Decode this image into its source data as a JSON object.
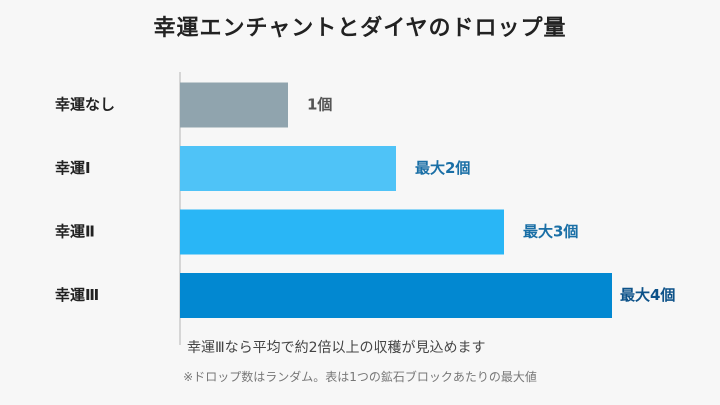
{
  "chart_data": {
    "type": "bar",
    "orientation": "horizontal",
    "title": "幸運エンチャントとダイヤのドロップ量",
    "categories": [
      "幸運なし",
      "幸運Ⅰ",
      "幸運Ⅱ",
      "幸運Ⅲ"
    ],
    "values": [
      1,
      2,
      3,
      4
    ],
    "value_labels": [
      "1個",
      "最大2個",
      "最大3個",
      "最大4個"
    ],
    "bar_colors": [
      "#90a4ae",
      "#4fc3f7",
      "#29b6f6",
      "#0288d1"
    ],
    "value_label_colors": [
      "#555555",
      "#1a6fa6",
      "#1a6fa6",
      "#0d5289"
    ],
    "xlim": [
      0,
      4
    ],
    "grid": false,
    "annotation": "幸運Ⅲなら平均で約2倍以上の収穫が見込めます",
    "footnote": "※ドロップ数はランダム。表は1つの鉱石ブロックあたりの最大値"
  }
}
